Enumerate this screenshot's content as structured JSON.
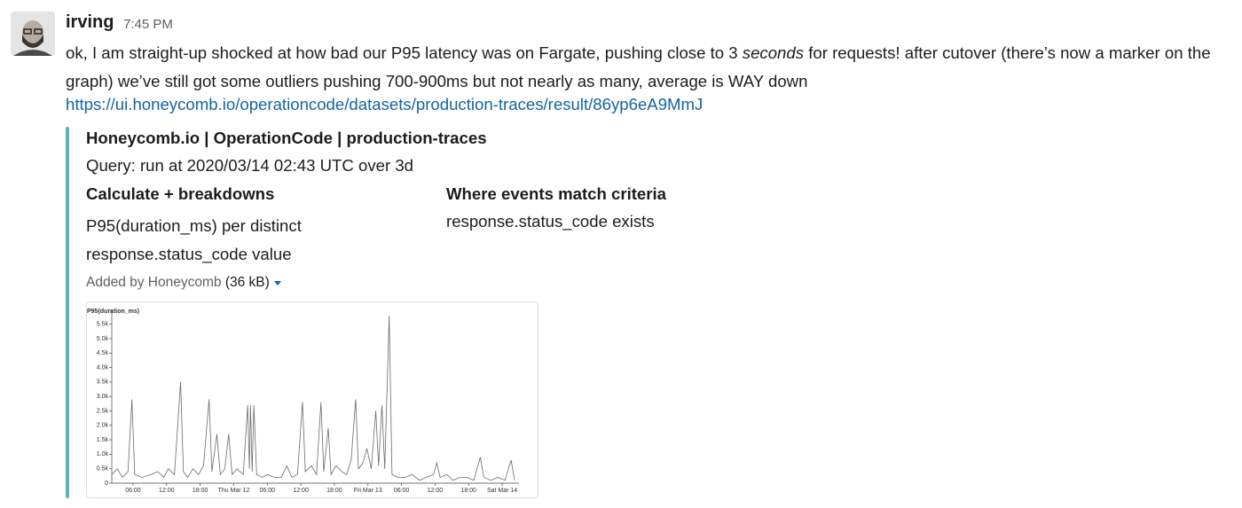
{
  "message": {
    "author": "irving",
    "time": "7:45 PM",
    "text": [
      "ok, I am straight-up shocked at how bad our P95 latency was on Fargate, pushing close to 3 ",
      "seconds",
      " for requests!  after cutover (there’s now a marker on the graph) we’ve still got some outliers pushing 700-900ms but not nearly as many, average is WAY down"
    ],
    "link": "https://ui.honeycomb.io/operationcode/datasets/production-traces/result/86yp6eA9MmJ"
  },
  "attachment": {
    "title": "Honeycomb.io | OperationCode | production-traces",
    "subtitle": "Query: run at 2020/03/14 02:43 UTC over 3d",
    "fields": [
      {
        "title": "Calculate + breakdowns",
        "value": "P95(duration_ms) per distinct response.status_code value"
      },
      {
        "title": "Where events match criteria",
        "value": "response.status_code exists"
      }
    ],
    "added_by": "Added by Honeycomb",
    "size": "(36 kB)"
  },
  "chart_data": {
    "type": "line",
    "y_label": "P95(duration_ms)",
    "color": "#6b6b6b",
    "x": [
      2.2,
      3.2,
      4.1,
      5.1,
      5.8,
      6.3,
      7.6,
      9.2,
      10.4,
      11.5,
      12.3,
      13.4,
      14.5,
      15.0,
      15.8,
      16.7,
      17.7,
      18.6,
      19.6,
      20.1,
      21.0,
      21.6,
      22.4,
      23.1,
      23.7,
      24.6,
      25.7,
      26.5,
      26.8,
      27.0,
      27.3,
      27.6,
      28.1,
      29.1,
      30.0,
      31.3,
      32.5,
      33.5,
      34.4,
      35.4,
      36.3,
      36.8,
      37.9,
      38.8,
      39.6,
      40.1,
      40.9,
      41.4,
      42.3,
      43.3,
      44.2,
      45.0,
      45.8,
      46.3,
      47.1,
      47.8,
      48.6,
      49.4,
      49.9,
      50.5,
      51.0,
      51.8,
      52.3,
      53.4,
      54.6,
      55.9,
      57.2,
      58.4,
      59.7,
      60.3,
      60.9,
      62.1,
      63.2,
      64.4,
      65.7,
      66.9,
      68.1,
      68.7,
      70.0,
      71.2,
      72.5,
      73.6,
      74.2
    ],
    "values": [
      300,
      500,
      200,
      400,
      2900,
      300,
      200,
      300,
      400,
      200,
      500,
      300,
      3500,
      400,
      200,
      500,
      300,
      600,
      2900,
      400,
      1700,
      300,
      500,
      1700,
      300,
      500,
      300,
      2700,
      500,
      2700,
      400,
      2700,
      300,
      200,
      300,
      200,
      200,
      600,
      200,
      300,
      2800,
      400,
      600,
      300,
      2800,
      400,
      1900,
      300,
      600,
      400,
      300,
      800,
      2900,
      500,
      700,
      1200,
      500,
      2500,
      600,
      2700,
      500,
      5800,
      300,
      200,
      200,
      300,
      100,
      200,
      300,
      700,
      200,
      300,
      100,
      200,
      200,
      100,
      900,
      200,
      100,
      200,
      100,
      800,
      100
    ],
    "xlim": [
      2.2,
      75
    ],
    "ylim": [
      0,
      6000
    ],
    "xticks": [
      {
        "value": 6,
        "label": "06:00"
      },
      {
        "value": 12,
        "label": "12:00"
      },
      {
        "value": 18,
        "label": "18:00"
      },
      {
        "value": 24,
        "label": "Thu Mar 12"
      },
      {
        "value": 30,
        "label": "06:00"
      },
      {
        "value": 36,
        "label": "12:00"
      },
      {
        "value": 42,
        "label": "18:00"
      },
      {
        "value": 48,
        "label": "Fri Mar 13"
      },
      {
        "value": 54,
        "label": "06:00"
      },
      {
        "value": 60,
        "label": "12:00"
      },
      {
        "value": 66,
        "label": "18:00"
      },
      {
        "value": 72,
        "label": "Sat Mar 14"
      }
    ],
    "yticks": [
      0,
      {
        "value": 500,
        "label": "0.5k"
      },
      {
        "value": 1000,
        "label": "1.0k"
      },
      {
        "value": 1500,
        "label": "1.5k"
      },
      {
        "value": 2000,
        "label": "2.0k"
      },
      {
        "value": 2500,
        "label": "2.5k"
      },
      {
        "value": 3000,
        "label": "3.0k"
      },
      {
        "value": 3500,
        "label": "3.5k"
      },
      {
        "value": 4000,
        "label": "4.0k"
      },
      {
        "value": 4500,
        "label": "4.5k"
      },
      {
        "value": 5000,
        "label": "5.0k"
      },
      {
        "value": 5500,
        "label": "5.5k"
      }
    ]
  }
}
